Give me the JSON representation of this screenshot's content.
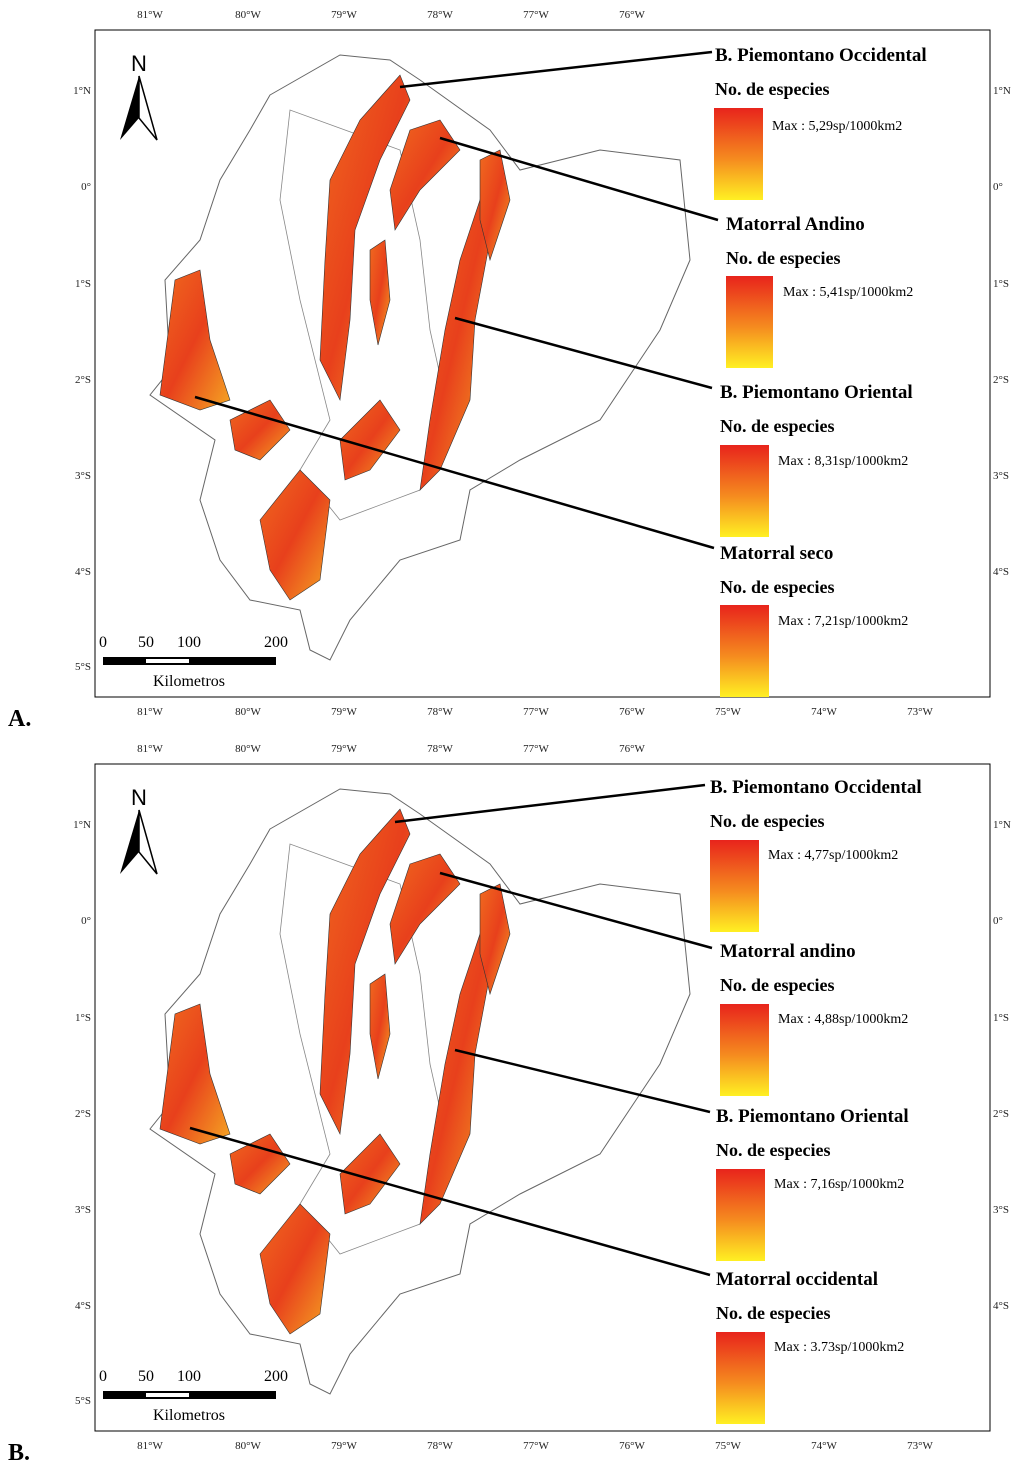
{
  "panels": [
    {
      "label": "A.",
      "top_lon_labels": [
        "81°W",
        "80°W",
        "79°W",
        "78°W",
        "77°W",
        "76°W"
      ],
      "bottom_lon_labels": [
        "81°W",
        "80°W",
        "79°W",
        "78°W",
        "77°W",
        "76°W",
        "75°W",
        "74°W",
        "73°W"
      ],
      "left_lat_labels": [
        "1°N",
        "0°",
        "1°S",
        "2°S",
        "3°S",
        "4°S",
        "5°S"
      ],
      "right_lat_labels": [
        "1°N",
        "0°",
        "1°S",
        "2°S",
        "3°S",
        "4°S"
      ],
      "north": "N",
      "scale_labels": [
        "0",
        "50",
        "100",
        "200"
      ],
      "scale_unit": "Kilometros",
      "legends": [
        {
          "title": "B. Piemontano Occidental",
          "subtitle": "No. de especies",
          "max": "Max : 5,29sp/1000km2"
        },
        {
          "title": "Matorral Andino",
          "subtitle": "No. de especies",
          "max": "Max : 5,41sp/1000km2"
        },
        {
          "title": "B. Piemontano Oriental",
          "subtitle": "No. de especies",
          "max": "Max : 8,31sp/1000km2"
        },
        {
          "title": "Matorral seco",
          "subtitle": "No. de especies",
          "max": "Max : 7,21sp/1000km2"
        }
      ]
    },
    {
      "label": "B.",
      "top_lon_labels": [
        "81°W",
        "80°W",
        "79°W",
        "78°W",
        "77°W",
        "76°W"
      ],
      "bottom_lon_labels": [
        "81°W",
        "80°W",
        "79°W",
        "78°W",
        "77°W",
        "76°W",
        "75°W",
        "74°W",
        "73°W"
      ],
      "left_lat_labels": [
        "1°N",
        "0°",
        "1°S",
        "2°S",
        "3°S",
        "4°S",
        "5°S"
      ],
      "right_lat_labels": [
        "1°N",
        "0°",
        "1°S",
        "2°S",
        "3°S",
        "4°S"
      ],
      "north": "N",
      "scale_labels": [
        "0",
        "50",
        "100",
        "200"
      ],
      "scale_unit": "Kilometros",
      "legends": [
        {
          "title": "B. Piemontano Occidental",
          "subtitle": "No. de especies",
          "max": "Max : 4,77sp/1000km2"
        },
        {
          "title": "Matorral andino",
          "subtitle": "No. de especies",
          "max": "Max : 4,88sp/1000km2"
        },
        {
          "title": "B. Piemontano Oriental",
          "subtitle": "No. de especies",
          "max": "Max : 7,16sp/1000km2"
        },
        {
          "title": "Matorral occidental",
          "subtitle": "No. de especies",
          "max": "Max : 3.73sp/1000km2"
        }
      ]
    }
  ]
}
